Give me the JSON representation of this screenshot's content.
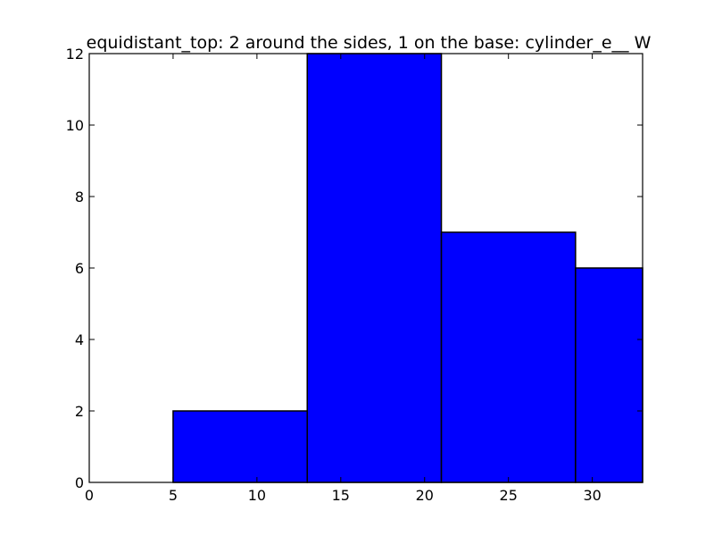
{
  "chart_data": {
    "type": "bar",
    "title": "equidistant_top: 2 around the sides, 1 on the base: cylinder_e__ W",
    "xlabel": "",
    "ylabel": "",
    "xlim": [
      0,
      33
    ],
    "ylim": [
      0,
      12
    ],
    "xticks": [
      0,
      5,
      10,
      15,
      20,
      25,
      30
    ],
    "yticks": [
      0,
      2,
      4,
      6,
      8,
      10,
      12
    ],
    "grid": false,
    "bins": [
      {
        "x0": 0,
        "x1": 5,
        "value": 0
      },
      {
        "x0": 5,
        "x1": 13,
        "value": 2
      },
      {
        "x0": 13,
        "x1": 21,
        "value": 12
      },
      {
        "x0": 21,
        "x1": 29,
        "value": 7
      },
      {
        "x0": 29,
        "x1": 33,
        "value": 6
      }
    ],
    "bar_color": "#0000ff",
    "edge_color": "#000000"
  }
}
